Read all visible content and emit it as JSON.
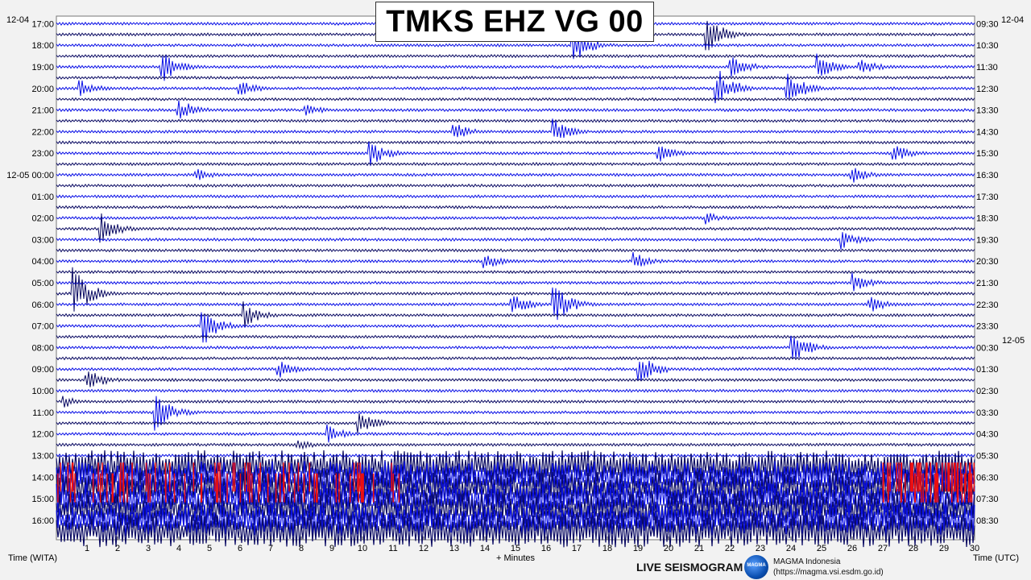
{
  "title": "TMKS EHZ VG 00",
  "date_left_top": "12-04",
  "date_right_top": "12-04",
  "date_right_mid": "12-05",
  "xlabel_left": "Time (WITA)",
  "xlabel_center": "+ Minutes",
  "xlabel_right": "Time (UTC)",
  "footer": {
    "live": "LIVE SEISMOGRAM",
    "org_name": "MAGMA Indonesia",
    "org_url": "(https://magma.vsi.esdm.go.id)",
    "logo_text": "MAGMA"
  },
  "colors": {
    "blue": "#0a10e6",
    "navy": "#0b0b63",
    "red": "#ee0f0f",
    "background": "#ffffff"
  },
  "chart_data": {
    "type": "line",
    "x_ticks": [
      "1",
      "2",
      "3",
      "4",
      "5",
      "6",
      "7",
      "8",
      "9",
      "10",
      "11",
      "12",
      "13",
      "14",
      "15",
      "16",
      "17",
      "18",
      "19",
      "20",
      "21",
      "22",
      "23",
      "24",
      "25",
      "26",
      "27",
      "28",
      "29",
      "30"
    ],
    "xlim": [
      0,
      30
    ],
    "left_labels": [
      "17:00",
      "18:00",
      "19:00",
      "20:00",
      "21:00",
      "22:00",
      "23:00",
      "12-05 00:00",
      "01:00",
      "02:00",
      "03:00",
      "04:00",
      "05:00",
      "06:00",
      "07:00",
      "08:00",
      "09:00",
      "10:00",
      "11:00",
      "12:00",
      "13:00",
      "14:00",
      "15:00",
      "16:00"
    ],
    "right_labels": [
      "09:30",
      "10:30",
      "11:30",
      "12:30",
      "13:30",
      "14:30",
      "15:30",
      "16:30",
      "17:30",
      "18:30",
      "19:30",
      "20:30",
      "21:30",
      "22:30",
      "23:30",
      "00:30",
      "01:30",
      "02:30",
      "03:30",
      "04:30",
      "05:30",
      "06:30",
      "07:30",
      "08:30"
    ],
    "traces_per_hour": 2,
    "events": [
      {
        "row": 1,
        "minute": 21.2,
        "amp": 3
      },
      {
        "row": 2,
        "minute": 16.8,
        "amp": 3
      },
      {
        "row": 4,
        "minute": 3.4,
        "amp": 2.5
      },
      {
        "row": 4,
        "minute": 22.0,
        "amp": 2
      },
      {
        "row": 4,
        "minute": 24.8,
        "amp": 2
      },
      {
        "row": 4,
        "minute": 26.2,
        "amp": 1.5
      },
      {
        "row": 6,
        "minute": 0.7,
        "amp": 1.5
      },
      {
        "row": 6,
        "minute": 5.9,
        "amp": 1.5
      },
      {
        "row": 6,
        "minute": 21.5,
        "amp": 3.5
      },
      {
        "row": 6,
        "minute": 23.8,
        "amp": 3
      },
      {
        "row": 8,
        "minute": 3.9,
        "amp": 2
      },
      {
        "row": 8,
        "minute": 8.1,
        "amp": 1
      },
      {
        "row": 10,
        "minute": 12.9,
        "amp": 1.5
      },
      {
        "row": 10,
        "minute": 16.2,
        "amp": 2
      },
      {
        "row": 12,
        "minute": 10.2,
        "amp": 2
      },
      {
        "row": 12,
        "minute": 19.6,
        "amp": 1.5
      },
      {
        "row": 12,
        "minute": 27.3,
        "amp": 1.5
      },
      {
        "row": 14,
        "minute": 4.5,
        "amp": 1
      },
      {
        "row": 14,
        "minute": 25.9,
        "amp": 1.5
      },
      {
        "row": 18,
        "minute": 21.2,
        "amp": 1
      },
      {
        "row": 19,
        "minute": 1.4,
        "amp": 2.5
      },
      {
        "row": 20,
        "minute": 25.6,
        "amp": 1.5
      },
      {
        "row": 22,
        "minute": 13.9,
        "amp": 1.5
      },
      {
        "row": 22,
        "minute": 18.8,
        "amp": 1.5
      },
      {
        "row": 24,
        "minute": 26.0,
        "amp": 1.5
      },
      {
        "row": 25,
        "minute": 0.5,
        "amp": 4
      },
      {
        "row": 26,
        "minute": 14.8,
        "amp": 2
      },
      {
        "row": 26,
        "minute": 16.2,
        "amp": 3
      },
      {
        "row": 26,
        "minute": 26.5,
        "amp": 1.5
      },
      {
        "row": 27,
        "minute": 6.1,
        "amp": 2
      },
      {
        "row": 28,
        "minute": 4.7,
        "amp": 3.5
      },
      {
        "row": 30,
        "minute": 24.0,
        "amp": 2.5
      },
      {
        "row": 32,
        "minute": 7.2,
        "amp": 1.5
      },
      {
        "row": 32,
        "minute": 19.0,
        "amp": 2.5
      },
      {
        "row": 33,
        "minute": 0.9,
        "amp": 2
      },
      {
        "row": 35,
        "minute": 0.2,
        "amp": 1
      },
      {
        "row": 36,
        "minute": 3.2,
        "amp": 3
      },
      {
        "row": 37,
        "minute": 9.8,
        "amp": 2
      },
      {
        "row": 38,
        "minute": 8.8,
        "amp": 1.5
      },
      {
        "row": 39,
        "minute": 7.8,
        "amp": 1
      }
    ],
    "tremor_start_row": 41
  }
}
